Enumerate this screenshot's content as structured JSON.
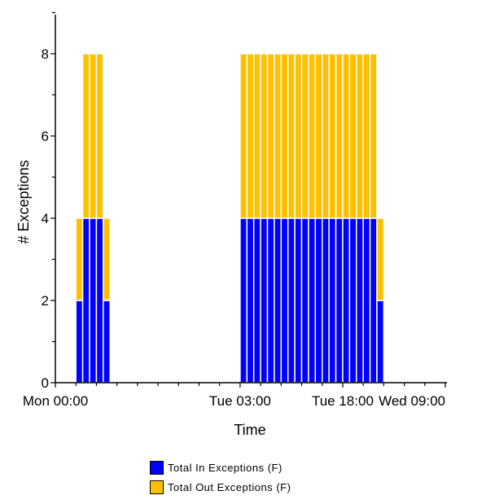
{
  "chart_data": {
    "type": "bar",
    "stacked": true,
    "xlabel": "Time",
    "ylabel": "# Exceptions",
    "ylim": [
      0,
      9
    ],
    "yticks": [
      0,
      2,
      4,
      6,
      8
    ],
    "xlim_hours": [
      0,
      57
    ],
    "xticks": [
      {
        "hour": 0,
        "label": "Mon 00:00"
      },
      {
        "hour": 27,
        "label": "Tue 03:00"
      },
      {
        "hour": 42,
        "label": "Tue 18:00"
      },
      {
        "hour": 57,
        "label": "Wed 09:00"
      }
    ],
    "bar_width_hours": 1,
    "x_hours": [
      3.5,
      4.5,
      5.5,
      6.5,
      7.5,
      27.5,
      28.5,
      29.5,
      30.5,
      31.5,
      32.5,
      33.5,
      34.5,
      35.5,
      36.5,
      37.5,
      38.5,
      39.5,
      40.5,
      41.5,
      42.5,
      43.5,
      44.5,
      45.5,
      46.5,
      47.5
    ],
    "series": [
      {
        "name": "Total In Exceptions (F)",
        "color": "#0000ff",
        "values": [
          2,
          4,
          4,
          4,
          2,
          4,
          4,
          4,
          4,
          4,
          4,
          4,
          4,
          4,
          4,
          4,
          4,
          4,
          4,
          4,
          4,
          4,
          4,
          4,
          4,
          2
        ]
      },
      {
        "name": "Total Out Exceptions (F)",
        "color": "#ffc000",
        "values": [
          2,
          4,
          4,
          4,
          2,
          4,
          4,
          4,
          4,
          4,
          4,
          4,
          4,
          4,
          4,
          4,
          4,
          4,
          4,
          4,
          4,
          4,
          4,
          4,
          4,
          2
        ]
      }
    ],
    "grid": false,
    "legend_position": "bottom-center"
  }
}
